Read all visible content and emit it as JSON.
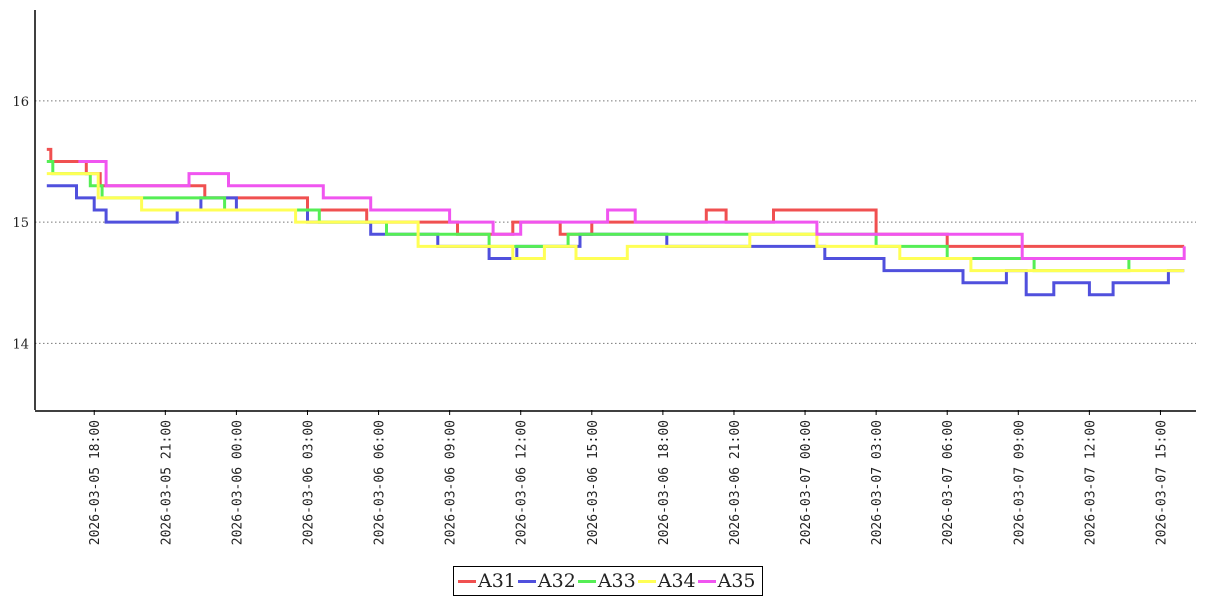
{
  "chart_data": {
    "type": "line",
    "x_unit": "datetime",
    "xlim": [
      "2026-03-05 15:30",
      "2026-03-07 16:30"
    ],
    "ylim": [
      13.45,
      16.75
    ],
    "yticks": [
      14,
      15,
      16
    ],
    "ytick_labels": [
      "14",
      "15",
      "16"
    ],
    "xticks": [
      "2026-03-05 18:00",
      "2026-03-05 21:00",
      "2026-03-06 00:00",
      "2026-03-06 03:00",
      "2026-03-06 06:00",
      "2026-03-06 09:00",
      "2026-03-06 12:00",
      "2026-03-06 15:00",
      "2026-03-06 18:00",
      "2026-03-06 21:00",
      "2026-03-07 00:00",
      "2026-03-07 03:00",
      "2026-03-07 06:00",
      "2026-03-07 09:00",
      "2026-03-07 12:00",
      "2026-03-07 15:00"
    ],
    "grid": "horizontal-dotted",
    "legend_position": "bottom-center",
    "title": "",
    "xlabel": "",
    "ylabel": "",
    "series": [
      {
        "name": "A31",
        "color": "#f05050",
        "step": true,
        "x": [
          "2026-03-05 16:00",
          "2026-03-05 16:10",
          "2026-03-05 17:40",
          "2026-03-05 18:15",
          "2026-03-05 22:40",
          "2026-03-06 03:00",
          "2026-03-06 05:30",
          "2026-03-06 09:20",
          "2026-03-06 11:40",
          "2026-03-06 13:40",
          "2026-03-06 15:00",
          "2026-03-06 19:50",
          "2026-03-06 20:40",
          "2026-03-06 22:40",
          "2026-03-07 03:00",
          "2026-03-07 06:00",
          "2026-03-07 16:00"
        ],
        "y": [
          15.6,
          15.5,
          15.4,
          15.3,
          15.2,
          15.1,
          15.0,
          14.9,
          15.0,
          14.9,
          15.0,
          15.1,
          15.0,
          15.1,
          14.9,
          14.8,
          14.8
        ]
      },
      {
        "name": "A32",
        "color": "#5050dd",
        "step": true,
        "x": [
          "2026-03-05 16:00",
          "2026-03-05 17:15",
          "2026-03-05 18:00",
          "2026-03-05 18:30",
          "2026-03-05 19:30",
          "2026-03-05 21:30",
          "2026-03-05 22:30",
          "2026-03-06 00:00",
          "2026-03-06 03:00",
          "2026-03-06 05:40",
          "2026-03-06 08:30",
          "2026-03-06 10:40",
          "2026-03-06 11:50",
          "2026-03-06 14:30",
          "2026-03-06 18:10",
          "2026-03-07 00:50",
          "2026-03-07 03:20",
          "2026-03-07 06:40",
          "2026-03-07 08:30",
          "2026-03-07 09:20",
          "2026-03-07 10:30",
          "2026-03-07 12:00",
          "2026-03-07 13:00",
          "2026-03-07 15:20",
          "2026-03-07 16:00"
        ],
        "y": [
          15.3,
          15.2,
          15.1,
          15.0,
          15.0,
          15.1,
          15.2,
          15.1,
          15.0,
          14.9,
          14.8,
          14.7,
          14.8,
          14.9,
          14.8,
          14.7,
          14.6,
          14.5,
          14.6,
          14.4,
          14.5,
          14.4,
          14.5,
          14.6,
          14.6
        ]
      },
      {
        "name": "A33",
        "color": "#55ee55",
        "step": true,
        "x": [
          "2026-03-05 16:00",
          "2026-03-05 16:15",
          "2026-03-05 17:50",
          "2026-03-05 18:20",
          "2026-03-05 19:50",
          "2026-03-05 23:30",
          "2026-03-06 03:30",
          "2026-03-06 06:20",
          "2026-03-06 10:40",
          "2026-03-06 14:00",
          "2026-03-06 18:10",
          "2026-03-07 03:00",
          "2026-03-07 06:00",
          "2026-03-07 09:40",
          "2026-03-07 11:50",
          "2026-03-07 13:40",
          "2026-03-07 16:00"
        ],
        "y": [
          15.5,
          15.4,
          15.3,
          15.2,
          15.2,
          15.1,
          15.0,
          14.9,
          14.8,
          14.9,
          14.9,
          14.8,
          14.7,
          14.6,
          14.6,
          14.7,
          14.7
        ]
      },
      {
        "name": "A34",
        "color": "#ffff55",
        "step": true,
        "x": [
          "2026-03-05 16:00",
          "2026-03-05 18:10",
          "2026-03-05 20:00",
          "2026-03-05 23:30",
          "2026-03-06 02:30",
          "2026-03-06 07:40",
          "2026-03-06 11:40",
          "2026-03-06 13:00",
          "2026-03-06 14:20",
          "2026-03-06 16:30",
          "2026-03-06 21:40",
          "2026-03-07 00:30",
          "2026-03-07 04:00",
          "2026-03-07 07:00",
          "2026-03-07 12:20",
          "2026-03-07 16:00"
        ],
        "y": [
          15.4,
          15.2,
          15.1,
          15.1,
          15.0,
          14.8,
          14.7,
          14.8,
          14.7,
          14.8,
          14.9,
          14.8,
          14.7,
          14.6,
          14.6,
          14.6
        ]
      },
      {
        "name": "A35",
        "color": "#f055f0",
        "step": true,
        "x": [
          "2026-03-05 17:20",
          "2026-03-05 18:30",
          "2026-03-05 21:20",
          "2026-03-05 22:00",
          "2026-03-05 23:40",
          "2026-03-06 03:40",
          "2026-03-06 05:40",
          "2026-03-06 09:00",
          "2026-03-06 10:50",
          "2026-03-06 12:00",
          "2026-03-06 15:40",
          "2026-03-06 16:50",
          "2026-03-06 19:30",
          "2026-03-06 22:30",
          "2026-03-07 00:30",
          "2026-03-07 01:30",
          "2026-03-07 09:10",
          "2026-03-07 16:00"
        ],
        "y": [
          15.5,
          15.3,
          15.3,
          15.4,
          15.3,
          15.2,
          15.1,
          15.0,
          14.9,
          15.0,
          15.1,
          15.0,
          15.0,
          15.0,
          14.9,
          14.9,
          14.7,
          14.8
        ]
      }
    ]
  }
}
